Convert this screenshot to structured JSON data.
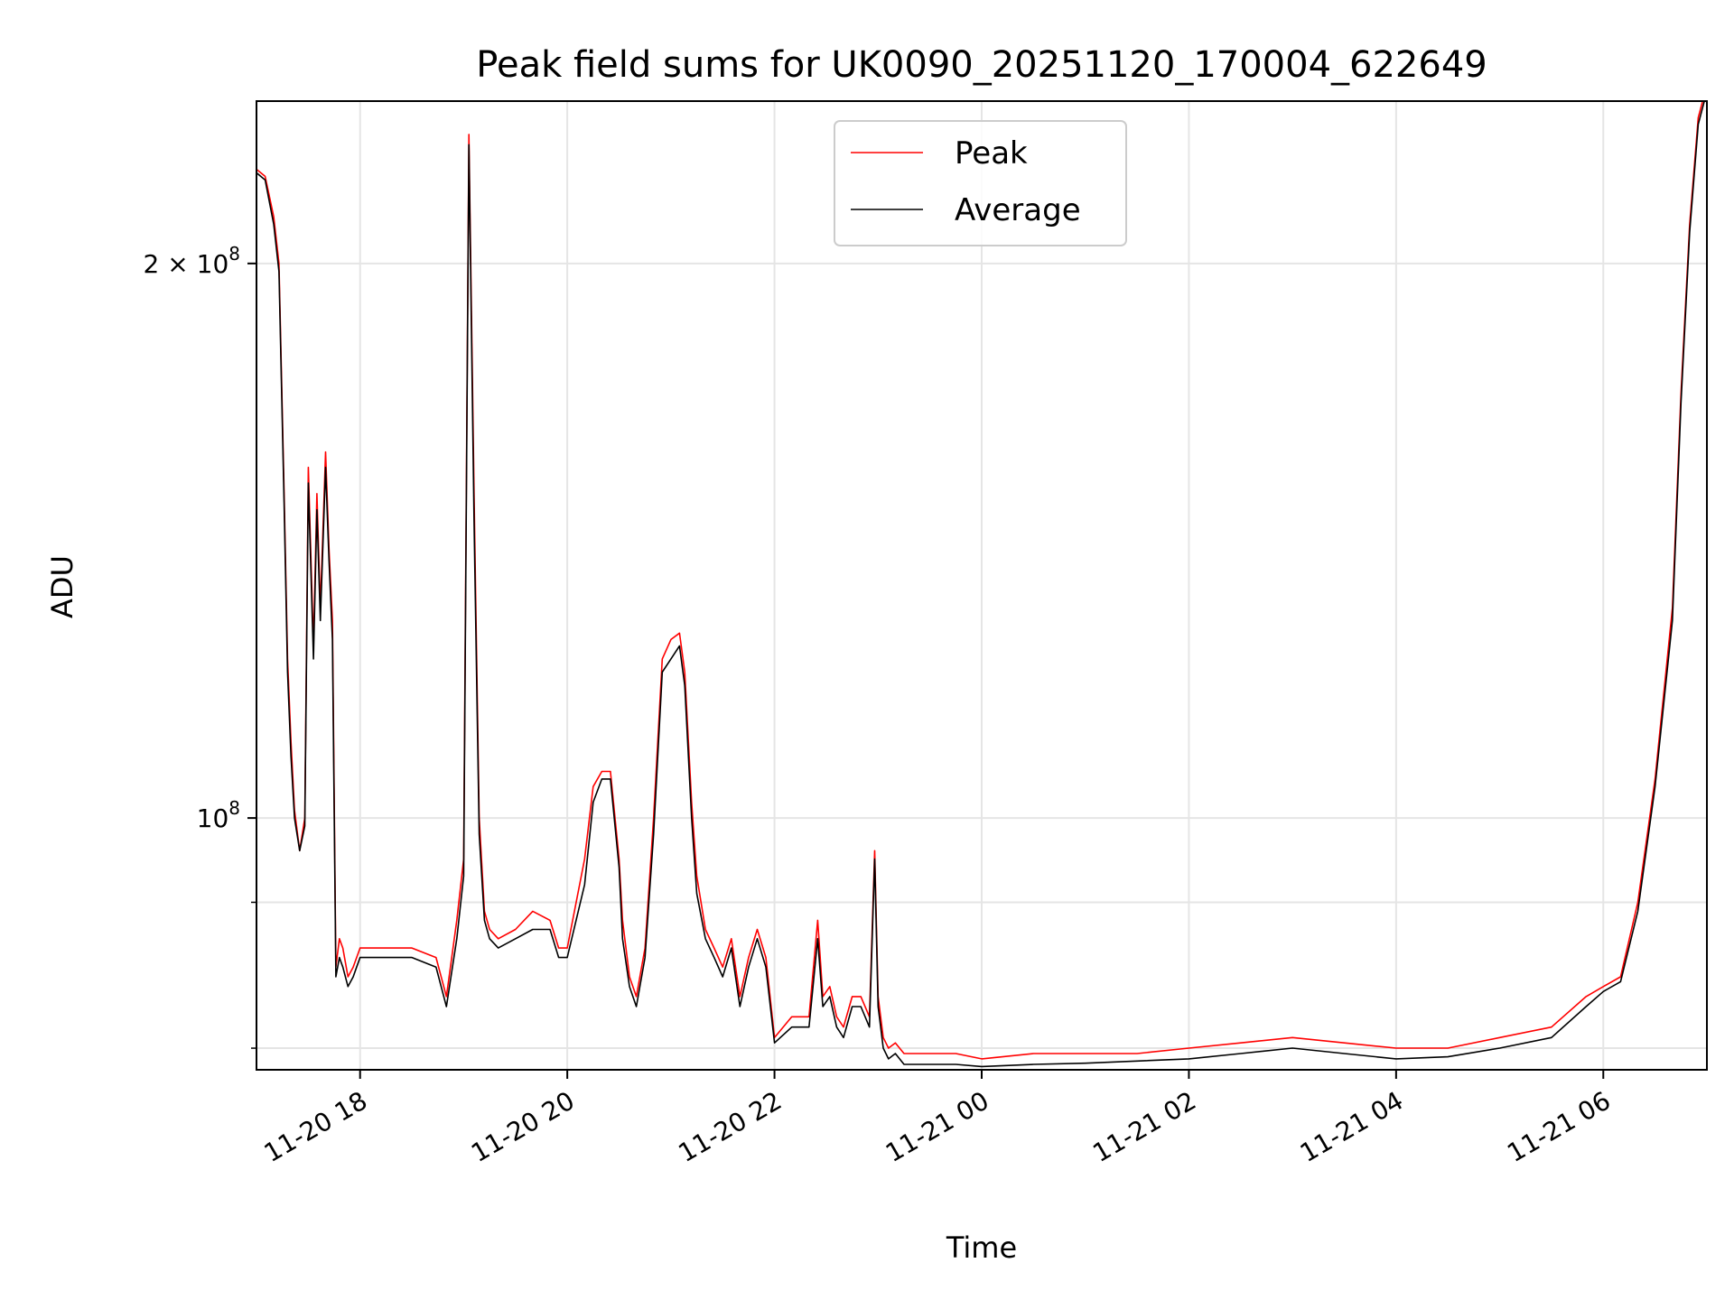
{
  "chart_data": {
    "type": "line",
    "title": "Peak field sums for UK0090_20251120_170004_622649",
    "xlabel": "Time",
    "ylabel": "ADU",
    "y_scale": "log",
    "grid": true,
    "legend_position": "top-center",
    "xlim": [
      "2025-11-20 17:00",
      "2025-11-21 07:00"
    ],
    "ylim": [
      73000000,
      245000000
    ],
    "x_ticks": [
      {
        "value": "2025-11-20 18:00",
        "label": "11-20 18"
      },
      {
        "value": "2025-11-20 20:00",
        "label": "11-20 20"
      },
      {
        "value": "2025-11-20 22:00",
        "label": "11-20 22"
      },
      {
        "value": "2025-11-21 00:00",
        "label": "11-21 00"
      },
      {
        "value": "2025-11-21 02:00",
        "label": "11-21 02"
      },
      {
        "value": "2025-11-21 04:00",
        "label": "11-21 04"
      },
      {
        "value": "2025-11-21 06:00",
        "label": "11-21 06"
      }
    ],
    "y_ticks": [
      {
        "value": 100000000,
        "base": "10",
        "exp": "8",
        "mantissa": ""
      },
      {
        "value": 200000000,
        "base": "10",
        "exp": "8",
        "mantissa": "2 × "
      }
    ],
    "y_minor_ticks": [
      75000000,
      90000000
    ],
    "series": [
      {
        "name": "Peak",
        "color": "#ff0000",
        "x": [
          "2025-11-20 17:00",
          "2025-11-20 17:05",
          "2025-11-20 17:10",
          "2025-11-20 17:13",
          "2025-11-20 17:16",
          "2025-11-20 17:18",
          "2025-11-20 17:20",
          "2025-11-20 17:22",
          "2025-11-20 17:25",
          "2025-11-20 17:28",
          "2025-11-20 17:30",
          "2025-11-20 17:33",
          "2025-11-20 17:35",
          "2025-11-20 17:37",
          "2025-11-20 17:40",
          "2025-11-20 17:42",
          "2025-11-20 17:44",
          "2025-11-20 17:46",
          "2025-11-20 17:48",
          "2025-11-20 17:50",
          "2025-11-20 17:53",
          "2025-11-20 17:56",
          "2025-11-20 17:58",
          "2025-11-20 18:00",
          "2025-11-20 18:30",
          "2025-11-20 18:44",
          "2025-11-20 18:50",
          "2025-11-20 18:56",
          "2025-11-20 19:00",
          "2025-11-20 19:03",
          "2025-11-20 19:06",
          "2025-11-20 19:09",
          "2025-11-20 19:12",
          "2025-11-20 19:15",
          "2025-11-20 19:20",
          "2025-11-20 19:30",
          "2025-11-20 19:40",
          "2025-11-20 19:50",
          "2025-11-20 19:55",
          "2025-11-20 20:00",
          "2025-11-20 20:10",
          "2025-11-20 20:15",
          "2025-11-20 20:20",
          "2025-11-20 20:25",
          "2025-11-20 20:30",
          "2025-11-20 20:32",
          "2025-11-20 20:36",
          "2025-11-20 20:40",
          "2025-11-20 20:45",
          "2025-11-20 20:50",
          "2025-11-20 20:55",
          "2025-11-20 21:00",
          "2025-11-20 21:05",
          "2025-11-20 21:08",
          "2025-11-20 21:12",
          "2025-11-20 21:15",
          "2025-11-20 21:20",
          "2025-11-20 21:25",
          "2025-11-20 21:30",
          "2025-11-20 21:35",
          "2025-11-20 21:40",
          "2025-11-20 21:45",
          "2025-11-20 21:50",
          "2025-11-20 21:55",
          "2025-11-20 22:00",
          "2025-11-20 22:10",
          "2025-11-20 22:20",
          "2025-11-20 22:25",
          "2025-11-20 22:28",
          "2025-11-20 22:32",
          "2025-11-20 22:36",
          "2025-11-20 22:40",
          "2025-11-20 22:45",
          "2025-11-20 22:50",
          "2025-11-20 22:55",
          "2025-11-20 22:58",
          "2025-11-20 23:00",
          "2025-11-20 23:03",
          "2025-11-20 23:06",
          "2025-11-20 23:10",
          "2025-11-20 23:15",
          "2025-11-20 23:30",
          "2025-11-20 23:45",
          "2025-11-21 00:00",
          "2025-11-21 00:30",
          "2025-11-21 01:00",
          "2025-11-21 01:30",
          "2025-11-21 02:00",
          "2025-11-21 02:30",
          "2025-11-21 03:00",
          "2025-11-21 03:30",
          "2025-11-21 04:00",
          "2025-11-21 04:30",
          "2025-11-21 05:00",
          "2025-11-21 05:30",
          "2025-11-21 05:50",
          "2025-11-21 06:00",
          "2025-11-21 06:10",
          "2025-11-21 06:20",
          "2025-11-21 06:30",
          "2025-11-21 06:40",
          "2025-11-21 06:45",
          "2025-11-21 06:50",
          "2025-11-21 06:55",
          "2025-11-21 07:00"
        ],
        "y": [
          225000000,
          223000000,
          212000000,
          200000000,
          150000000,
          122000000,
          110000000,
          101000000,
          96000000,
          100000000,
          155000000,
          124000000,
          150000000,
          130000000,
          158000000,
          140000000,
          128000000,
          83000000,
          86000000,
          85000000,
          82000000,
          83000000,
          84000000,
          85000000,
          85000000,
          84000000,
          80000000,
          88000000,
          95000000,
          235000000,
          150000000,
          100000000,
          89000000,
          87000000,
          86000000,
          87000000,
          89000000,
          88000000,
          85000000,
          85000000,
          95000000,
          104000000,
          106000000,
          106000000,
          95000000,
          88000000,
          82000000,
          80000000,
          85000000,
          100000000,
          122000000,
          125000000,
          126000000,
          120000000,
          102000000,
          93000000,
          87000000,
          85000000,
          83000000,
          86000000,
          80000000,
          84000000,
          87000000,
          84000000,
          76000000,
          78000000,
          78000000,
          88000000,
          80000000,
          81000000,
          78000000,
          77000000,
          80000000,
          80000000,
          78000000,
          96000000,
          80000000,
          76000000,
          75000000,
          75500000,
          74500000,
          74500000,
          74500000,
          74000000,
          74500000,
          74500000,
          74500000,
          75000000,
          75500000,
          76000000,
          75500000,
          75000000,
          75000000,
          76000000,
          77000000,
          80000000,
          81000000,
          82000000,
          90000000,
          105000000,
          130000000,
          170000000,
          210000000,
          240000000,
          250000000
        ]
      },
      {
        "name": "Average",
        "color": "#000000",
        "x": [
          "2025-11-20 17:00",
          "2025-11-20 17:05",
          "2025-11-20 17:10",
          "2025-11-20 17:13",
          "2025-11-20 17:16",
          "2025-11-20 17:18",
          "2025-11-20 17:20",
          "2025-11-20 17:22",
          "2025-11-20 17:25",
          "2025-11-20 17:28",
          "2025-11-20 17:30",
          "2025-11-20 17:33",
          "2025-11-20 17:35",
          "2025-11-20 17:37",
          "2025-11-20 17:40",
          "2025-11-20 17:42",
          "2025-11-20 17:44",
          "2025-11-20 17:46",
          "2025-11-20 17:48",
          "2025-11-20 17:50",
          "2025-11-20 17:53",
          "2025-11-20 17:56",
          "2025-11-20 17:58",
          "2025-11-20 18:00",
          "2025-11-20 18:30",
          "2025-11-20 18:44",
          "2025-11-20 18:50",
          "2025-11-20 18:56",
          "2025-11-20 19:00",
          "2025-11-20 19:03",
          "2025-11-20 19:06",
          "2025-11-20 19:09",
          "2025-11-20 19:12",
          "2025-11-20 19:15",
          "2025-11-20 19:20",
          "2025-11-20 19:30",
          "2025-11-20 19:40",
          "2025-11-20 19:50",
          "2025-11-20 19:55",
          "2025-11-20 20:00",
          "2025-11-20 20:10",
          "2025-11-20 20:15",
          "2025-11-20 20:20",
          "2025-11-20 20:25",
          "2025-11-20 20:30",
          "2025-11-20 20:32",
          "2025-11-20 20:36",
          "2025-11-20 20:40",
          "2025-11-20 20:45",
          "2025-11-20 20:50",
          "2025-11-20 20:55",
          "2025-11-20 21:00",
          "2025-11-20 21:05",
          "2025-11-20 21:08",
          "2025-11-20 21:12",
          "2025-11-20 21:15",
          "2025-11-20 21:20",
          "2025-11-20 21:25",
          "2025-11-20 21:30",
          "2025-11-20 21:35",
          "2025-11-20 21:40",
          "2025-11-20 21:45",
          "2025-11-20 21:50",
          "2025-11-20 21:55",
          "2025-11-20 22:00",
          "2025-11-20 22:10",
          "2025-11-20 22:20",
          "2025-11-20 22:25",
          "2025-11-20 22:28",
          "2025-11-20 22:32",
          "2025-11-20 22:36",
          "2025-11-20 22:40",
          "2025-11-20 22:45",
          "2025-11-20 22:50",
          "2025-11-20 22:55",
          "2025-11-20 22:58",
          "2025-11-20 23:00",
          "2025-11-20 23:03",
          "2025-11-20 23:06",
          "2025-11-20 23:10",
          "2025-11-20 23:15",
          "2025-11-20 23:30",
          "2025-11-20 23:45",
          "2025-11-21 00:00",
          "2025-11-21 00:30",
          "2025-11-21 01:00",
          "2025-11-21 01:30",
          "2025-11-21 02:00",
          "2025-11-21 02:30",
          "2025-11-21 03:00",
          "2025-11-21 03:30",
          "2025-11-21 04:00",
          "2025-11-21 04:30",
          "2025-11-21 05:00",
          "2025-11-21 05:30",
          "2025-11-21 05:50",
          "2025-11-21 06:00",
          "2025-11-21 06:10",
          "2025-11-21 06:20",
          "2025-11-21 06:30",
          "2025-11-21 06:40",
          "2025-11-21 06:45",
          "2025-11-21 06:50",
          "2025-11-21 06:55",
          "2025-11-21 07:00"
        ],
        "y": [
          224000000,
          222000000,
          210000000,
          198000000,
          148000000,
          120000000,
          108000000,
          100000000,
          96000000,
          99000000,
          152000000,
          122000000,
          147000000,
          128000000,
          155000000,
          138000000,
          125000000,
          82000000,
          84000000,
          83000000,
          81000000,
          82000000,
          83000000,
          84000000,
          84000000,
          83000000,
          79000000,
          86000000,
          93000000,
          232000000,
          145000000,
          98000000,
          88000000,
          86000000,
          85000000,
          86000000,
          87000000,
          87000000,
          84000000,
          84000000,
          92000000,
          102000000,
          105000000,
          105000000,
          94000000,
          86000000,
          81000000,
          79000000,
          84000000,
          98000000,
          120000000,
          122000000,
          124000000,
          118000000,
          100000000,
          91000000,
          86000000,
          84000000,
          82000000,
          85000000,
          79000000,
          83000000,
          86000000,
          83000000,
          75500000,
          77000000,
          77000000,
          86000000,
          79000000,
          80000000,
          77000000,
          76000000,
          79000000,
          79000000,
          77000000,
          95000000,
          79000000,
          75000000,
          74000000,
          74500000,
          73500000,
          73500000,
          73500000,
          73300000,
          73500000,
          73600000,
          73800000,
          74000000,
          74500000,
          75000000,
          74500000,
          74000000,
          74200000,
          75000000,
          76000000,
          79000000,
          80500000,
          81500000,
          89000000,
          104000000,
          128000000,
          168000000,
          208000000,
          238000000,
          248000000
        ]
      }
    ]
  }
}
